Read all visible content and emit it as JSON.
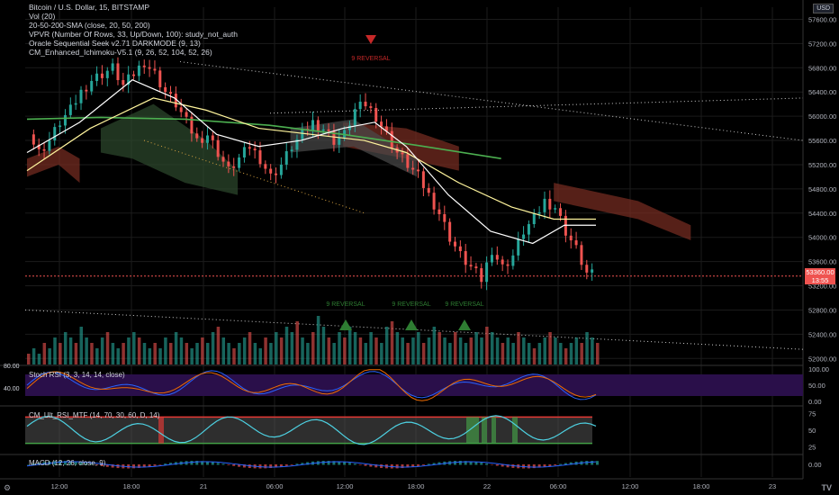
{
  "symbol_title": "Bitcoin / U.S. Dollar, 15, BITSTAMP",
  "legend_lines": [
    "Vol (20)",
    "20-50-200-SMA (close, 20, 50, 200)",
    "VPVR (Number Of Rows, 33, Up/Down, 100): study_not_auth",
    "Oracle Sequential Seek v2.71 DARKMODE  (9, 13)",
    "CM_Enhanced_Ichimoku-V5.1 (9, 26, 52, 104, 52, 26)"
  ],
  "stoch_label": "Stoch RSI (3, 3, 14, 14, close)",
  "cm_rsi_label": "CM_Ult_RSI_MTF (14, 70, 30, 60, D, 14)",
  "macd_label": "MACD (12, 26, close, 9)",
  "currency_badge": "USD",
  "current_price_label": "53360.00",
  "countdown_label": "13:55",
  "colors": {
    "up": "#26a69a",
    "down": "#ef5350",
    "sma20": "#ffffff",
    "sma50": "#fff59d",
    "sma200": "#4caf50",
    "kijun": "#1a237e",
    "cloud_red": "#7a2e22",
    "cloud_green": "#2e4a2e",
    "stoch_bg": "#2a0f4a",
    "rsi_line": "#4dd0e1",
    "grid": "#1b1b1b"
  },
  "annotations": [
    {
      "text": "9 REVERSAL",
      "kind": "sell"
    },
    {
      "text": "9 REVERSAL",
      "kind": "buy"
    },
    {
      "text": "9 REVERSAL",
      "kind": "buy"
    },
    {
      "text": "9 REVERSAL",
      "kind": "buy"
    }
  ],
  "chart_data": {
    "type": "candlestick",
    "title": "Bitcoin / U.S. Dollar, 15, BITSTAMP",
    "x_ticks": [
      "12:00",
      "18:00",
      "21",
      "06:00",
      "12:00",
      "18:00",
      "22",
      "06:00",
      "12:00",
      "18:00",
      "23"
    ],
    "y_ticks": [
      57600,
      57200,
      56800,
      56400,
      56000,
      55600,
      55200,
      54800,
      54400,
      54000,
      53600,
      53200,
      52800,
      52400,
      52000
    ],
    "ylim": [
      51900,
      57800
    ],
    "last_price": 53360.0,
    "close_path": [
      [
        0,
        55700
      ],
      [
        2,
        55400
      ],
      [
        4,
        55600
      ],
      [
        6,
        55900
      ],
      [
        8,
        56100
      ],
      [
        10,
        56400
      ],
      [
        12,
        56600
      ],
      [
        14,
        56700
      ],
      [
        16,
        56800
      ],
      [
        18,
        56500
      ],
      [
        20,
        56700
      ],
      [
        22,
        56900
      ],
      [
        24,
        56700
      ],
      [
        26,
        56400
      ],
      [
        28,
        56200
      ],
      [
        30,
        55900
      ],
      [
        32,
        55600
      ],
      [
        34,
        55700
      ],
      [
        36,
        55400
      ],
      [
        38,
        55100
      ],
      [
        40,
        55300
      ],
      [
        42,
        55500
      ],
      [
        44,
        55300
      ],
      [
        46,
        55000
      ],
      [
        48,
        55200
      ],
      [
        50,
        55500
      ],
      [
        52,
        55700
      ],
      [
        54,
        55900
      ],
      [
        56,
        55800
      ],
      [
        58,
        55600
      ],
      [
        60,
        55700
      ],
      [
        62,
        56100
      ],
      [
        64,
        56200
      ],
      [
        66,
        56000
      ],
      [
        68,
        55700
      ],
      [
        70,
        55400
      ],
      [
        72,
        55200
      ],
      [
        74,
        55000
      ],
      [
        76,
        54700
      ],
      [
        78,
        54400
      ],
      [
        80,
        54000
      ],
      [
        82,
        53700
      ],
      [
        84,
        53500
      ],
      [
        86,
        53300
      ],
      [
        88,
        53800
      ],
      [
        90,
        53500
      ],
      [
        92,
        53700
      ],
      [
        94,
        54100
      ],
      [
        96,
        54300
      ],
      [
        98,
        54600
      ],
      [
        100,
        54500
      ],
      [
        102,
        54100
      ],
      [
        104,
        53800
      ],
      [
        106,
        53400
      ],
      [
        108,
        53360
      ]
    ],
    "sma20_path": [
      [
        0,
        55400
      ],
      [
        10,
        55900
      ],
      [
        20,
        56600
      ],
      [
        28,
        56300
      ],
      [
        36,
        55700
      ],
      [
        44,
        55500
      ],
      [
        52,
        55600
      ],
      [
        60,
        55800
      ],
      [
        66,
        55900
      ],
      [
        72,
        55500
      ],
      [
        80,
        54700
      ],
      [
        88,
        54100
      ],
      [
        96,
        53900
      ],
      [
        102,
        54200
      ],
      [
        108,
        54200
      ]
    ],
    "sma50_path": [
      [
        0,
        55100
      ],
      [
        12,
        55800
      ],
      [
        24,
        56300
      ],
      [
        34,
        56100
      ],
      [
        44,
        55800
      ],
      [
        54,
        55700
      ],
      [
        64,
        55600
      ],
      [
        72,
        55400
      ],
      [
        82,
        54900
      ],
      [
        92,
        54500
      ],
      [
        100,
        54300
      ],
      [
        108,
        54300
      ]
    ],
    "sma200_path": [
      [
        0,
        55950
      ],
      [
        14,
        55980
      ],
      [
        30,
        55950
      ],
      [
        46,
        55850
      ],
      [
        60,
        55700
      ],
      [
        74,
        55520
      ],
      [
        90,
        55300
      ]
    ],
    "volume": [
      2,
      3,
      2,
      4,
      3,
      5,
      4,
      6,
      5,
      4,
      7,
      5,
      4,
      3,
      5,
      6,
      4,
      3,
      4,
      5,
      6,
      5,
      4,
      3,
      4,
      3,
      5,
      4,
      6,
      5,
      4,
      3,
      4,
      5,
      4,
      6,
      7,
      5,
      4,
      3,
      4,
      5,
      6,
      4,
      3,
      5,
      4,
      6,
      5,
      7,
      6,
      8,
      5,
      4,
      6,
      9,
      7,
      5,
      4,
      6,
      5,
      7,
      6,
      5,
      4,
      6,
      5,
      4,
      7,
      8,
      6,
      5,
      4,
      5,
      6,
      4,
      5,
      7,
      6,
      5,
      4,
      6,
      5,
      4,
      5,
      6,
      5,
      7,
      6,
      5,
      4,
      5,
      4,
      6,
      5,
      4,
      3,
      4,
      5,
      6,
      5,
      4,
      3,
      4,
      5,
      4,
      6,
      5,
      4
    ],
    "stoch_ticks": [
      100,
      50,
      0
    ],
    "rsi_ticks": [
      75,
      50,
      25
    ],
    "macd_ticks": [
      0
    ],
    "stoch_marker_labels": [
      "80.00",
      "40.00"
    ]
  }
}
